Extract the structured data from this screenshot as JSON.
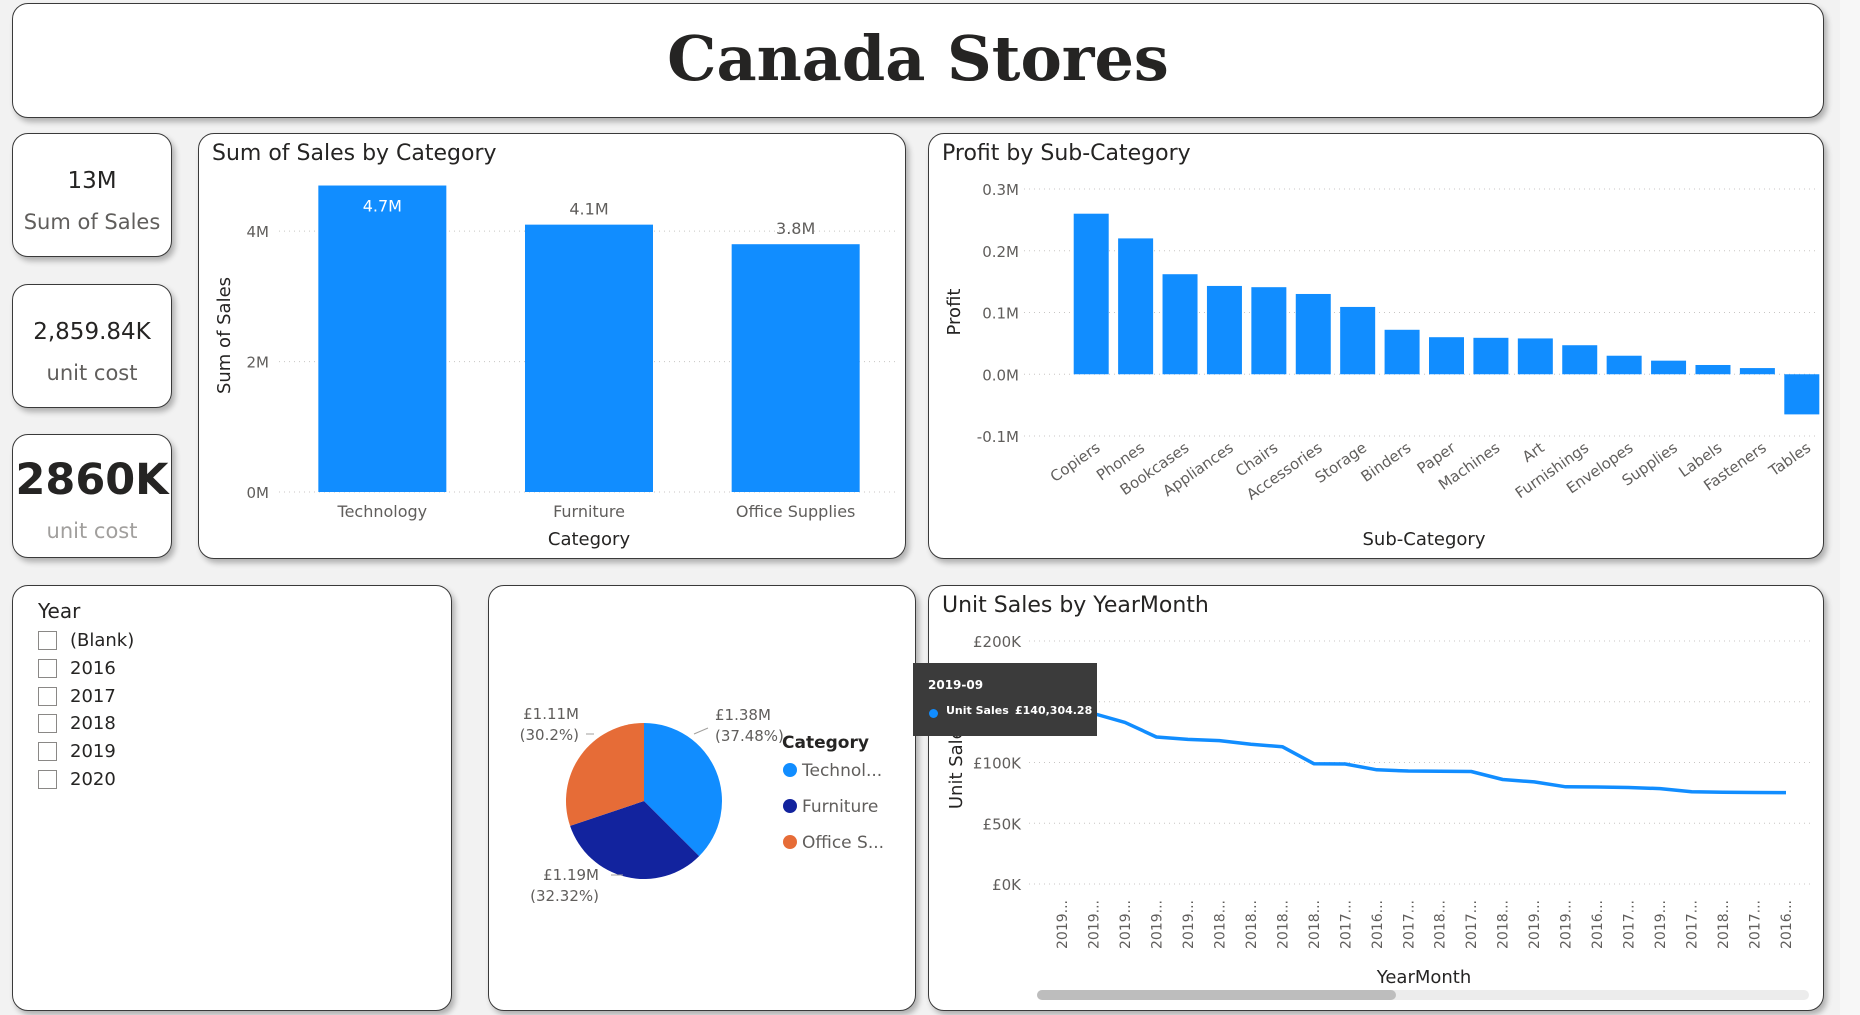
{
  "title": "Canada Stores",
  "kpis": [
    {
      "value": "13M",
      "label": "Sum of Sales"
    },
    {
      "value": "2,859.84K",
      "label": "unit cost"
    },
    {
      "value": "2860K",
      "label": "unit cost"
    }
  ],
  "colors": {
    "accent": "#118dff",
    "dark_blue": "#12239e",
    "orange": "#e66c37"
  },
  "sales_by_category": {
    "chart_data": {
      "type": "bar",
      "title": "Sum of Sales by Category",
      "xlabel": "Category",
      "ylabel": "Sum of Sales",
      "categories": [
        "Technology",
        "Furniture",
        "Office Supplies"
      ],
      "values": [
        4.7,
        4.1,
        3.8
      ],
      "data_labels": [
        "4.7M",
        "4.1M",
        "3.8M"
      ],
      "ylim": [
        0,
        4.8
      ],
      "ticks": [
        0,
        2,
        4
      ],
      "tick_labels": [
        "0M",
        "2M",
        "4M"
      ],
      "grid": true
    }
  },
  "profit_by_subcategory": {
    "chart_data": {
      "type": "bar",
      "title": "Profit by Sub-Category",
      "xlabel": "Sub-Category",
      "ylabel": "Profit",
      "categories": [
        "Copiers",
        "Phones",
        "Bookcases",
        "Appliances",
        "Chairs",
        "Accessories",
        "Storage",
        "Binders",
        "Paper",
        "Machines",
        "Art",
        "Furnishings",
        "Envelopes",
        "Supplies",
        "Labels",
        "Fasteners",
        "Tables"
      ],
      "values": [
        0.26,
        0.22,
        0.162,
        0.143,
        0.141,
        0.13,
        0.109,
        0.072,
        0.06,
        0.059,
        0.058,
        0.047,
        0.03,
        0.022,
        0.015,
        0.01,
        -0.065
      ],
      "ylim": [
        -0.1,
        0.3
      ],
      "ticks": [
        -0.1,
        0,
        0.1,
        0.2,
        0.3
      ],
      "tick_labels": [
        "-0.1M",
        "0.0M",
        "0.1M",
        "0.2M",
        "0.3M"
      ],
      "grid": true
    }
  },
  "year_slicer": {
    "title": "Year",
    "options": [
      "(Blank)",
      "2016",
      "2017",
      "2018",
      "2019",
      "2020"
    ]
  },
  "category_pie": {
    "chart_data": {
      "type": "pie",
      "legend_title": "Category",
      "slices": [
        {
          "name": "Technology",
          "legend_label": "Technol...",
          "value": 1.38,
          "label_value": "£1.38M",
          "label_pct": "(37.48%)"
        },
        {
          "name": "Furniture",
          "legend_label": "Furniture",
          "value": 1.19,
          "label_value": "£1.19M",
          "label_pct": "(32.32%)"
        },
        {
          "name": "Office Supplies",
          "legend_label": "Office S...",
          "value": 1.11,
          "label_value": "£1.11M",
          "label_pct": "(30.2%)"
        }
      ],
      "legend_position": "right"
    }
  },
  "unit_sales": {
    "chart_data": {
      "type": "line",
      "title": "Unit Sales by YearMonth",
      "xlabel": "YearMonth",
      "ylabel": "Unit Sales",
      "x": [
        "2019...",
        "2019...",
        "2019...",
        "2019...",
        "2019...",
        "2018...",
        "2018...",
        "2018...",
        "2018...",
        "2017...",
        "2016...",
        "2017...",
        "2018...",
        "2017...",
        "2018...",
        "2019...",
        "2019...",
        "2016...",
        "2017...",
        "2019...",
        "2017...",
        "2018...",
        "2017...",
        "2016..."
      ],
      "values": [
        148000,
        140304.28,
        133000,
        121000,
        119000,
        118000,
        115000,
        113000,
        99000,
        98800,
        94000,
        93000,
        92800,
        92600,
        86000,
        84000,
        80000,
        79800,
        79400,
        78500,
        76000,
        75500,
        75300,
        75200
      ],
      "ylim": [
        0,
        200000
      ],
      "ticks": [
        0,
        50000,
        100000,
        150000,
        200000
      ],
      "tick_labels": [
        "£0K",
        "£50K",
        "£100K",
        "",
        "£200K"
      ],
      "grid": true
    },
    "tooltip": {
      "header": "2019-09",
      "label": "Unit Sales",
      "value": "£140,304.28"
    }
  }
}
